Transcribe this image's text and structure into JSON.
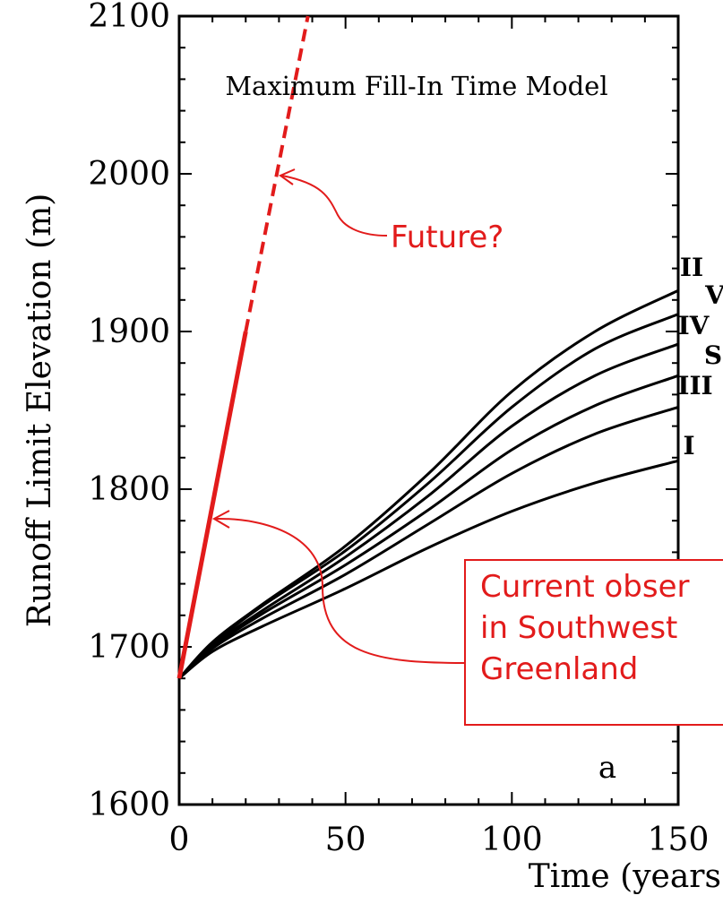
{
  "chart_data": {
    "type": "line",
    "title": "Maximum Fill-In Time Model",
    "xlabel": "Time (years",
    "ylabel": "Runoff Limit Elevation (m)",
    "xlim": [
      0,
      150
    ],
    "ylim": [
      1600,
      2100
    ],
    "xticks": [
      0,
      50,
      100,
      150
    ],
    "yticks": [
      1600,
      1700,
      1800,
      1900,
      2000,
      2100
    ],
    "panel_label": "a",
    "series": [
      {
        "name": "II",
        "x": [
          0,
          10,
          25,
          50,
          75,
          100,
          125,
          150
        ],
        "y": [
          1680,
          1703,
          1727,
          1764,
          1810,
          1862,
          1900,
          1926
        ]
      },
      {
        "name": "V",
        "x": [
          0,
          10,
          25,
          50,
          75,
          100,
          125,
          150
        ],
        "y": [
          1680,
          1702,
          1726,
          1761,
          1804,
          1852,
          1889,
          1911
        ]
      },
      {
        "name": "IV",
        "x": [
          0,
          10,
          25,
          50,
          75,
          100,
          125,
          150
        ],
        "y": [
          1680,
          1701,
          1723,
          1757,
          1796,
          1840,
          1872,
          1892
        ]
      },
      {
        "name": "S",
        "x": [
          0,
          10,
          25,
          50,
          75,
          100,
          125,
          150
        ],
        "y": [
          1680,
          1700,
          1721,
          1752,
          1787,
          1825,
          1853,
          1872
        ]
      },
      {
        "name": "III",
        "x": [
          0,
          10,
          25,
          50,
          75,
          100,
          125,
          150
        ],
        "y": [
          1680,
          1699,
          1718,
          1746,
          1778,
          1810,
          1835,
          1852
        ]
      },
      {
        "name": "I",
        "x": [
          0,
          10,
          25,
          50,
          75,
          100,
          125,
          150
        ],
        "y": [
          1680,
          1697,
          1713,
          1737,
          1763,
          1786,
          1804,
          1818
        ]
      }
    ],
    "observed_trend": {
      "solid": {
        "x": [
          0,
          20
        ],
        "y": [
          1680,
          1900
        ]
      },
      "dashed": {
        "x": [
          20,
          38.7
        ],
        "y": [
          1900,
          2100
        ]
      },
      "color": "#e21b1b"
    },
    "annotations": {
      "future": "Future?",
      "current": [
        "Current obser",
        "in Southwest",
        "Greenland"
      ],
      "color": "#e21b1b"
    }
  }
}
